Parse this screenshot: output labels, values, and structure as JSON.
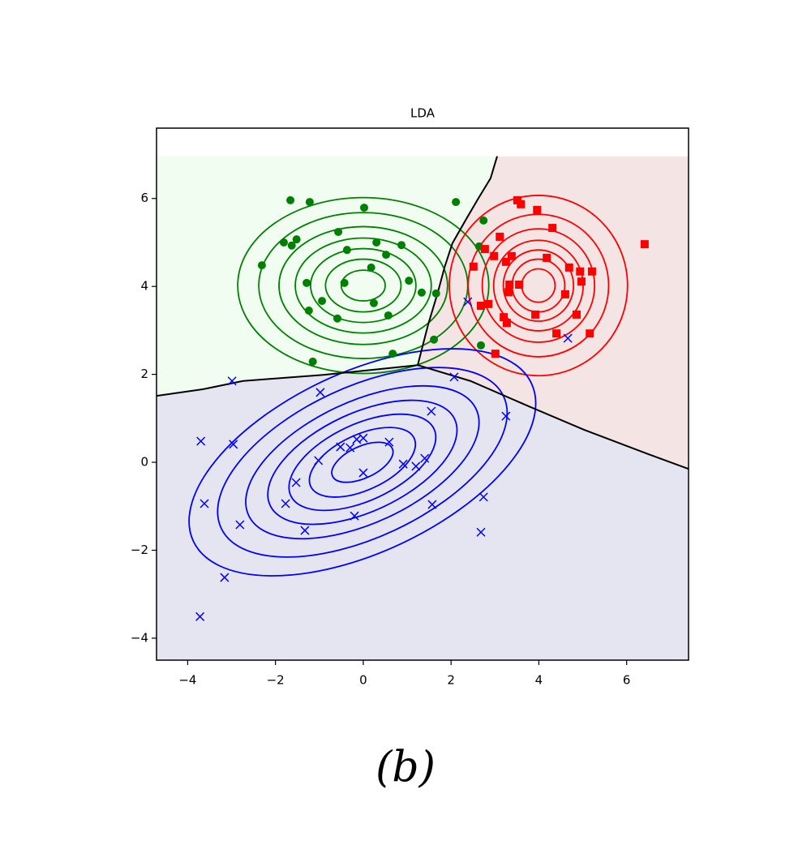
{
  "chart_data": {
    "type": "scatter",
    "title": "LDA",
    "caption": "(b)",
    "xlim": [
      -4.71,
      7.41
    ],
    "ylim": [
      -4.5,
      7.6
    ],
    "region_ylim": [
      -4.5,
      6.96
    ],
    "xticks": [
      {
        "value": -4,
        "label": "−4"
      },
      {
        "value": -2,
        "label": "−2"
      },
      0,
      2,
      4,
      6
    ],
    "yticks": [
      {
        "value": -4,
        "label": "−4"
      },
      {
        "value": -2,
        "label": "−2"
      },
      0,
      2,
      4,
      6
    ],
    "boundaries": [
      {
        "x": [
          3.05,
          2.9,
          2.62,
          2.35,
          2.03,
          1.85,
          1.7,
          1.48,
          1.24
        ],
        "y": [
          6.96,
          6.46,
          6.0,
          5.54,
          4.98,
          4.43,
          3.87,
          3.14,
          2.21
        ]
      },
      {
        "x": [
          -4.71,
          -3.66,
          -2.74,
          -0.89,
          1.24
        ],
        "y": [
          1.51,
          1.66,
          1.85,
          1.99,
          2.21
        ]
      },
      {
        "x": [
          1.24,
          2.44,
          3.73,
          5.03,
          6.51,
          7.41
        ],
        "y": [
          2.21,
          1.85,
          1.29,
          0.74,
          0.18,
          -0.15
        ]
      }
    ],
    "series": [
      {
        "marker": "o",
        "color": "#008000",
        "region_color": "#f2fdf2",
        "x": [
          -1.66,
          -1.22,
          0.02,
          2.11,
          2.74,
          -2.31,
          -1.81,
          -1.63,
          -1.52,
          -0.57,
          -0.37,
          0.3,
          0.52,
          0.87,
          0.18,
          -0.43,
          -1.29,
          -0.94,
          -1.24,
          -0.59,
          0.24,
          0.57,
          1.04,
          1.33,
          1.66,
          1.61,
          0.67,
          -1.15,
          2.64,
          2.68
        ],
        "values": [
          5.96,
          5.92,
          5.79,
          5.92,
          5.5,
          4.48,
          5.0,
          4.93,
          5.07,
          5.24,
          4.83,
          5.0,
          4.72,
          4.94,
          4.43,
          4.08,
          4.08,
          3.67,
          3.45,
          3.27,
          3.62,
          3.34,
          4.13,
          3.86,
          3.84,
          2.79,
          2.47,
          2.29,
          4.91,
          2.66
        ],
        "contour_center": [
          0,
          4.02
        ],
        "contour_angle": 0,
        "contour_rx": [
          2.86,
          2.38,
          1.92,
          1.55,
          1.2,
          0.86,
          0.5
        ],
        "contour_ry": [
          2.0,
          1.66,
          1.34,
          1.08,
          0.84,
          0.6,
          0.35
        ]
      },
      {
        "marker": "s",
        "color": "#ff0000",
        "region_color": "#f4e4e4",
        "x": [
          3.51,
          3.59,
          3.96,
          4.31,
          3.11,
          2.77,
          2.98,
          3.38,
          3.25,
          4.18,
          2.51,
          4.69,
          4.94,
          5.21,
          4.97,
          3.33,
          3.55,
          3.31,
          4.6,
          2.85,
          2.68,
          3.92,
          4.86,
          3.2,
          3.27,
          4.4,
          5.16,
          3.01,
          6.41
        ],
        "values": [
          5.96,
          5.87,
          5.74,
          5.33,
          5.13,
          4.85,
          4.69,
          4.69,
          4.56,
          4.65,
          4.45,
          4.43,
          4.34,
          4.34,
          4.11,
          4.04,
          4.04,
          3.87,
          3.82,
          3.6,
          3.56,
          3.36,
          3.36,
          3.3,
          3.17,
          2.93,
          2.93,
          2.47,
          4.96
        ],
        "contour_center": [
          3.99,
          4.02
        ],
        "contour_angle": 0,
        "contour_rx": [
          2.03,
          1.6,
          1.28,
          1.02,
          0.8,
          0.6,
          0.38
        ],
        "contour_ry": [
          2.05,
          1.62,
          1.29,
          1.03,
          0.81,
          0.6,
          0.38
        ]
      },
      {
        "marker": "x",
        "color": "#0000ff",
        "region_color": "#e5e5f1",
        "x": [
          -2.99,
          -0.98,
          2.07,
          2.38,
          1.55,
          3.25,
          4.66,
          -3.7,
          -2.96,
          -0.52,
          -0.3,
          -0.15,
          0,
          0.59,
          -1.02,
          0.91,
          1.2,
          1.4,
          0,
          -1.53,
          -3.62,
          -1.77,
          1.57,
          2.74,
          -0.2,
          -2.81,
          -1.33,
          2.68,
          -3.16,
          -3.72
        ],
        "values": [
          1.85,
          1.59,
          1.94,
          3.65,
          1.16,
          1.05,
          2.82,
          0.48,
          0.41,
          0.35,
          0.33,
          0.52,
          0.55,
          0.46,
          0.04,
          -0.04,
          -0.09,
          0.09,
          -0.24,
          -0.46,
          -0.94,
          -0.94,
          -0.96,
          -0.79,
          -1.22,
          -1.42,
          -1.55,
          -1.59,
          -2.62,
          -3.51
        ],
        "contour_center": [
          -0.02,
          0.0
        ],
        "contour_angle": 25,
        "contour_rx": [
          4.25,
          3.55,
          2.86,
          2.32,
          1.8,
          1.3,
          0.75
        ],
        "contour_ry": [
          2.05,
          1.71,
          1.38,
          1.12,
          0.87,
          0.63,
          0.36
        ]
      }
    ]
  }
}
